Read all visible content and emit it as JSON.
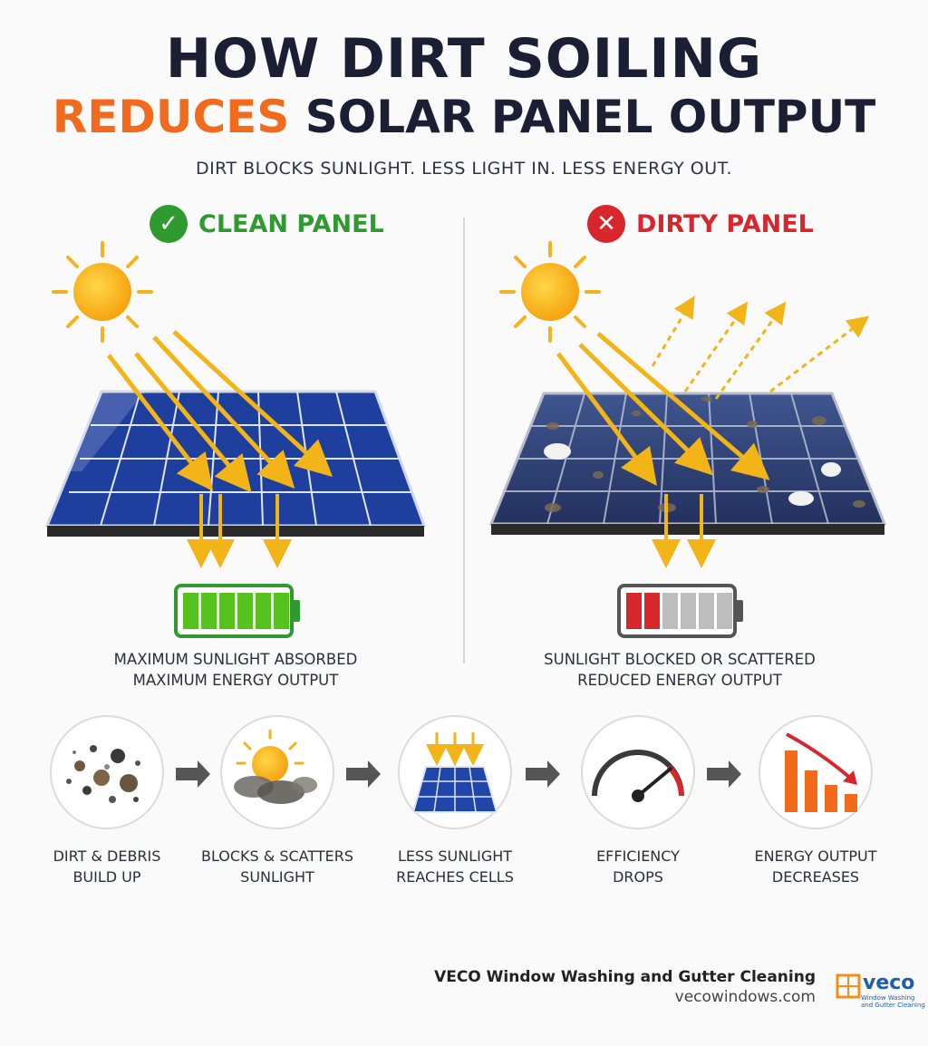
{
  "title": {
    "line1": "HOW DIRT SOILING",
    "line2_accent": "REDUCES",
    "line2_rest": " SOLAR PANEL OUTPUT",
    "subtitle": "DIRT BLOCKS SUNLIGHT. LESS LIGHT IN. LESS ENERGY OUT."
  },
  "clean": {
    "header": "CLEAN PANEL",
    "caption_line1": "MAXIMUM SUNLIGHT ABSORBED",
    "caption_line2": "MAXIMUM ENERGY OUTPUT",
    "battery_level": 1.0,
    "color": "#2f9a2f"
  },
  "dirty": {
    "header": "DIRTY PANEL",
    "caption_line1": "SUNLIGHT BLOCKED OR SCATTERED",
    "caption_line2": "REDUCED ENERGY OUTPUT",
    "battery_level": 0.33,
    "color": "#d7262c"
  },
  "steps": [
    {
      "line1": "DIRT & DEBRIS",
      "line2": "BUILD UP",
      "icon": "dirt-particles-icon"
    },
    {
      "line1": "BLOCKS & SCATTERS",
      "line2": "SUNLIGHT",
      "icon": "sun-dust-cloud-icon"
    },
    {
      "line1": "LESS SUNLIGHT",
      "line2": "REACHES CELLS",
      "icon": "panel-sunlight-icon"
    },
    {
      "line1": "EFFICIENCY",
      "line2": "DROPS",
      "icon": "gauge-icon"
    },
    {
      "line1": "ENERGY OUTPUT",
      "line2": "DECREASES",
      "icon": "declining-bars-icon"
    }
  ],
  "footer": {
    "company": "VECO Window Washing and Gutter Cleaning",
    "website": "vecowindows.com",
    "logo_word": "veco",
    "logo_tag1": "Window Washing",
    "logo_tag2": "and Gutter Cleaning"
  }
}
